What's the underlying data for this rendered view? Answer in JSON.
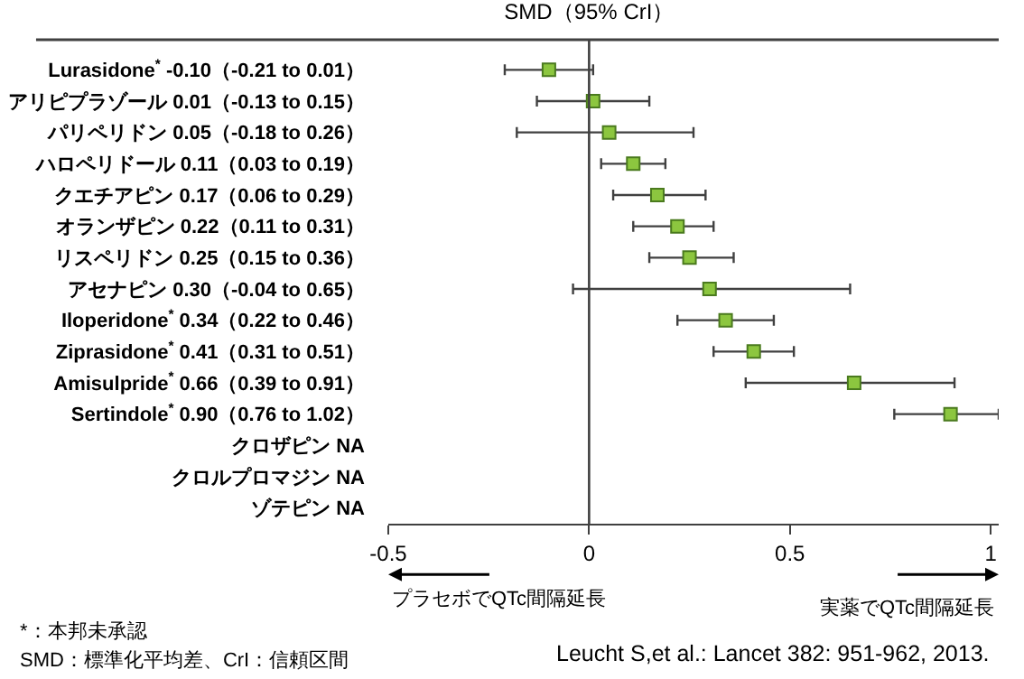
{
  "chart_data": {
    "type": "scatter",
    "orientation": "horizontal",
    "title": "SMD（95% CrI）",
    "categories": [
      "Lurasidone$^{*}$ -0.10（-0.21 to 0.01）",
      "アリピプラゾール 0.01（-0.13 to 0.15）",
      "パリペリドン 0.05（-0.18 to 0.26）",
      "ハロペリドール 0.11（0.03 to 0.19）",
      "クエチアピン 0.17（0.06 to 0.29）",
      "オランザピン 0.22（0.11 to 0.31）",
      "リスペリドン 0.25（0.15 to 0.36）",
      "アセナピン 0.30（-0.04 to 0.65）",
      "Iloperidone$^{*}$ 0.34（0.22 to 0.46）",
      "Ziprasidone$^{*}$ 0.41（0.31 to 0.51）",
      "Amisulpride$^{*}$ 0.66（0.39 to 0.91）",
      "Sertindole$^{*}$ 0.90（0.76 to 1.02）",
      "クロザピン NA",
      "クロルプロマジン NA",
      "ゾテピン NA"
    ],
    "series": [
      {
        "color": "#8cc63f",
        "values": [
          -0.1,
          0.01,
          0.05,
          0.11,
          0.17,
          0.22,
          0.25,
          0.3,
          0.34,
          0.41,
          0.66,
          0.9,
          null,
          null,
          null
        ],
        "errors": [
          [
            -0.21,
            0.01
          ],
          [
            -0.13,
            0.15
          ],
          [
            -0.18,
            0.26
          ],
          [
            0.03,
            0.19
          ],
          [
            0.06,
            0.29
          ],
          [
            0.11,
            0.31
          ],
          [
            0.15,
            0.36
          ],
          [
            -0.04,
            0.65
          ],
          [
            0.22,
            0.46
          ],
          [
            0.31,
            0.51
          ],
          [
            0.39,
            0.91
          ],
          [
            0.76,
            1.02
          ],
          null,
          null,
          null
        ]
      }
    ],
    "xlim": [
      -0.5,
      1.02
    ],
    "xticks": [
      -0.5,
      0,
      0.5,
      1
    ],
    "ref_lines": [
      {
        "axis": "x",
        "value": 0,
        "color": "#404040"
      }
    ],
    "marker": "square",
    "grid": false,
    "annotations": [
      "プラセボでQTc間隔延長",
      "実薬でQTc間隔延長",
      "*：本邦未承認",
      "SMD：標準化平均差、CrI：信頼区間",
      "Leucht S,et al.: Lancet 382: 951-962, 2013."
    ]
  }
}
